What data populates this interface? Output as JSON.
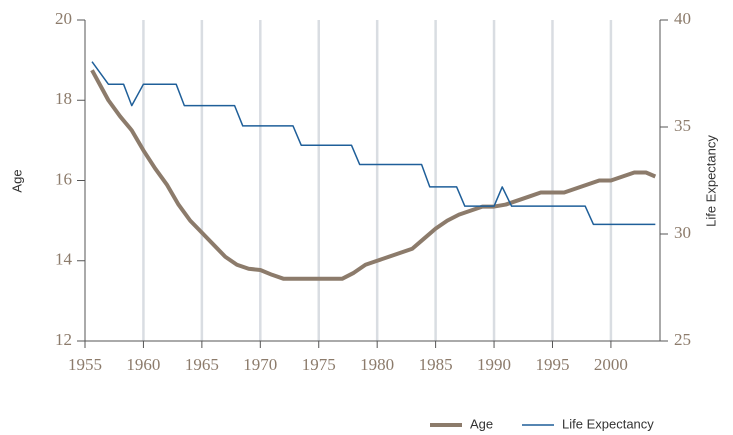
{
  "chart_data": {
    "type": "line",
    "xlim": [
      1955,
      2004.2
    ],
    "xticks": [
      1955,
      1960,
      1965,
      1970,
      1975,
      1980,
      1985,
      1990,
      1995,
      2000
    ],
    "ylim": [
      12,
      20
    ],
    "yticks": [
      12,
      14,
      16,
      18,
      20
    ],
    "y2lim": [
      25,
      40
    ],
    "y2ticks": [
      25,
      30,
      35,
      40
    ],
    "ylabel": "Age",
    "y2label": "Life Expectancy",
    "grid": true,
    "legend": "bottom-right",
    "series": [
      {
        "name": "Age",
        "color": "#8c7b6b",
        "axis": "y",
        "x": [
          1955.6,
          1957,
          1958,
          1959,
          1960,
          1961,
          1962,
          1963,
          1964,
          1965,
          1966,
          1967,
          1968,
          1969,
          1970,
          1971,
          1972,
          1973,
          1974,
          1975,
          1976,
          1977,
          1978,
          1979,
          1980,
          1981,
          1982,
          1983,
          1984,
          1985,
          1986,
          1987,
          1988,
          1989,
          1990,
          1991,
          1992,
          1993,
          1994,
          1995,
          1996,
          1997,
          1998,
          1999,
          2000,
          2001,
          2002,
          2003,
          2003.8
        ],
        "values": [
          18.75,
          18.0,
          17.6,
          17.25,
          16.75,
          16.3,
          15.9,
          15.4,
          15.0,
          14.7,
          14.4,
          14.1,
          13.9,
          13.8,
          13.77,
          13.65,
          13.55,
          13.55,
          13.55,
          13.55,
          13.55,
          13.55,
          13.7,
          13.9,
          14.0,
          14.1,
          14.2,
          14.3,
          14.55,
          14.8,
          15.0,
          15.15,
          15.25,
          15.35,
          15.35,
          15.4,
          15.5,
          15.6,
          15.7,
          15.7,
          15.7,
          15.8,
          15.9,
          16.0,
          16.0,
          16.1,
          16.2,
          16.2,
          16.1
        ]
      },
      {
        "name": "Life Expectancy",
        "color": "#1f5f99",
        "axis": "y2",
        "x": [
          1955.6,
          1957.0,
          1958.3,
          1959.0,
          1960.0,
          1962.8,
          1963.5,
          1967.8,
          1968.5,
          1972.8,
          1973.5,
          1977.8,
          1978.5,
          1983.8,
          1984.5,
          1986.8,
          1987.5,
          1990.0,
          1990.7,
          1991.5,
          1997.8,
          1998.5,
          2003.8
        ],
        "values": [
          38.05,
          37.0,
          37.0,
          36.0,
          37.0,
          37.0,
          36.0,
          36.0,
          35.05,
          35.05,
          34.15,
          34.15,
          33.25,
          33.25,
          32.2,
          32.2,
          31.3,
          31.3,
          32.2,
          31.3,
          31.3,
          30.45,
          30.45
        ]
      }
    ]
  }
}
